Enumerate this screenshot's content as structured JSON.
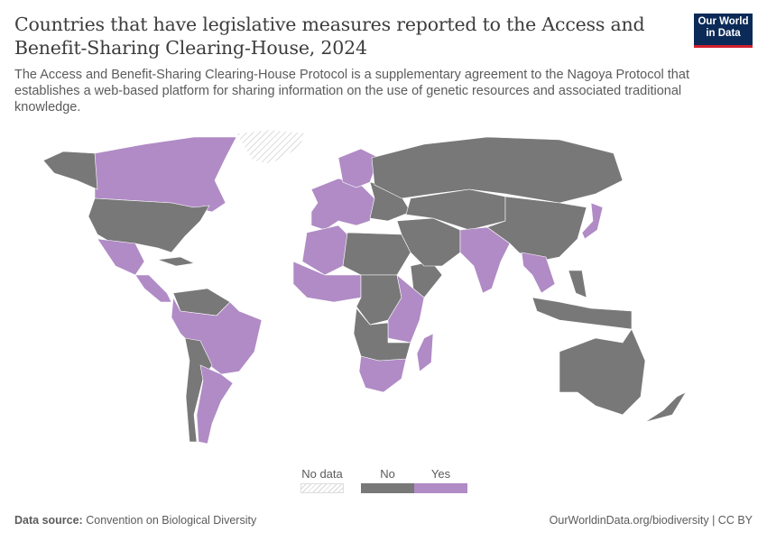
{
  "header": {
    "title": "Countries that have legislative measures reported to the Access and Benefit-Sharing Clearing-House, 2024",
    "subtitle": "The Access and Benefit-Sharing Clearing-House Protocol is a supplementary agreement to the Nagoya Protocol that establishes a web-based platform for sharing information on the use of genetic resources and associated traditional knowledge.",
    "logo_line1": "Our World",
    "logo_line2": "in Data"
  },
  "colors": {
    "yes": "#b08bc5",
    "no": "#787878",
    "no_data_hatch": "#d8d8d8",
    "logo_bg": "#0b2a57",
    "logo_accent": "#cf1f2e"
  },
  "legend": {
    "items": [
      {
        "label": "No data",
        "key": "no_data"
      },
      {
        "label": "No",
        "key": "no"
      },
      {
        "label": "Yes",
        "key": "yes"
      }
    ]
  },
  "regions": [
    {
      "id": "canada",
      "status": "yes"
    },
    {
      "id": "usa",
      "status": "no"
    },
    {
      "id": "alaska",
      "status": "no"
    },
    {
      "id": "greenland",
      "status": "no_data"
    },
    {
      "id": "mexico",
      "status": "yes"
    },
    {
      "id": "central-america",
      "status": "yes"
    },
    {
      "id": "caribbean",
      "status": "no"
    },
    {
      "id": "venezuela-guyana",
      "status": "no"
    },
    {
      "id": "colombia-peru-brazil",
      "status": "yes"
    },
    {
      "id": "chile-bolivia",
      "status": "no"
    },
    {
      "id": "argentina",
      "status": "yes"
    },
    {
      "id": "europe",
      "status": "yes"
    },
    {
      "id": "scandinavia",
      "status": "yes"
    },
    {
      "id": "eastern-europe",
      "status": "no"
    },
    {
      "id": "russia",
      "status": "no"
    },
    {
      "id": "north-africa-west",
      "status": "yes"
    },
    {
      "id": "north-africa-east",
      "status": "no"
    },
    {
      "id": "west-africa",
      "status": "yes"
    },
    {
      "id": "central-africa",
      "status": "no"
    },
    {
      "id": "east-africa",
      "status": "yes"
    },
    {
      "id": "horn-of-africa",
      "status": "no"
    },
    {
      "id": "southern-africa",
      "status": "yes"
    },
    {
      "id": "angola-zambia",
      "status": "no"
    },
    {
      "id": "madagascar",
      "status": "yes"
    },
    {
      "id": "middle-east",
      "status": "no"
    },
    {
      "id": "central-asia",
      "status": "no"
    },
    {
      "id": "india",
      "status": "yes"
    },
    {
      "id": "china",
      "status": "no"
    },
    {
      "id": "southeast-asia",
      "status": "yes"
    },
    {
      "id": "japan",
      "status": "yes"
    },
    {
      "id": "indonesia",
      "status": "no"
    },
    {
      "id": "philippines",
      "status": "no"
    },
    {
      "id": "australia",
      "status": "no"
    },
    {
      "id": "new-zealand",
      "status": "no"
    }
  ],
  "footer": {
    "source_label": "Data source:",
    "source": "Convention on Biological Diversity",
    "url": "OurWorldinData.org/biodiversity | CC BY"
  }
}
